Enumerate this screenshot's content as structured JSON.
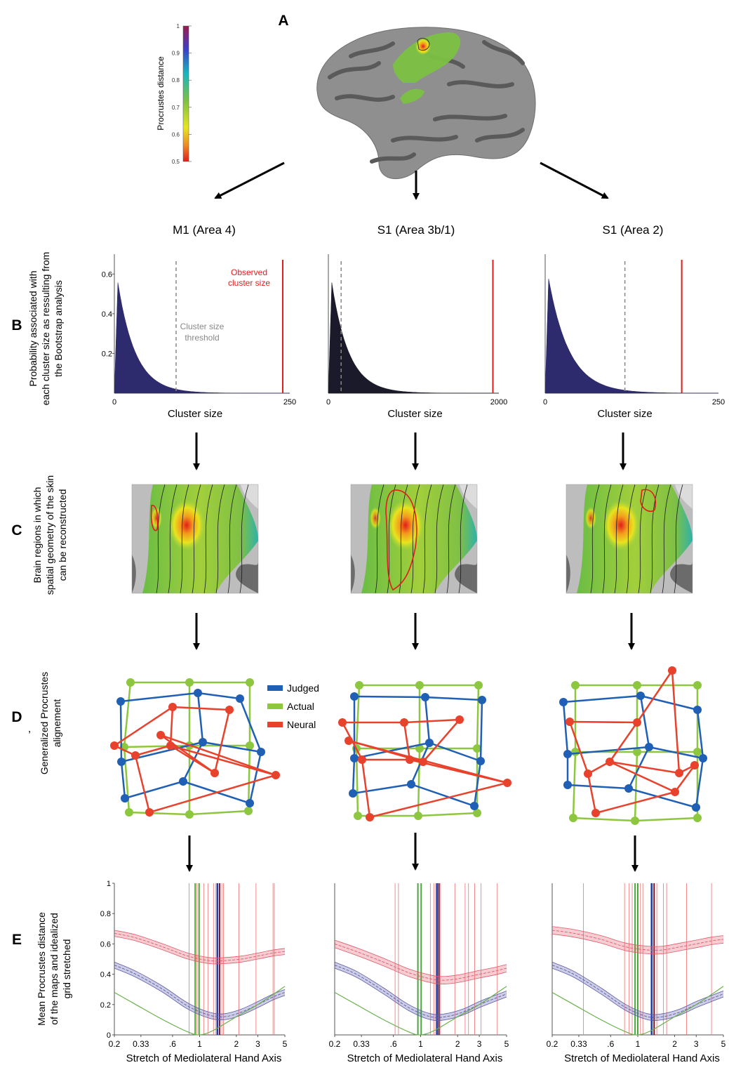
{
  "panel_letters": [
    "A",
    "B",
    "C",
    "D",
    "E",
    "’"
  ],
  "colorbar": {
    "label": "Procrustes distance",
    "ticks": [
      "1",
      "0.9",
      "0.8",
      "0.7",
      "0.6",
      "0.5"
    ],
    "colors": [
      "#9b1a4b",
      "#3c3ec9",
      "#16b7bf",
      "#7dc242",
      "#e6e51e",
      "#f08a22",
      "#e31c1c"
    ]
  },
  "column_titles": [
    "M1 (Area 4)",
    "S1 (Area 3b/1)",
    "S1 (Area 2)"
  ],
  "row_labels": {
    "B": [
      "Probability associated with",
      "each cluster size as ressulting from",
      "the Bootstrap analysis"
    ],
    "C": [
      "Brain regions  in which",
      "spatial geometry of the skin",
      "can be reconstructed"
    ],
    "D": [
      "Generalized Procrustes",
      "alignement"
    ],
    "E": [
      "Mean Procrustes distance",
      "of the  maps and idealized",
      "grid stretched"
    ]
  },
  "annotations": {
    "observed": [
      "Observed",
      "cluster size"
    ],
    "threshold": [
      "Cluster size",
      "threshold"
    ]
  },
  "legend": [
    {
      "label": "Judged",
      "color": "#1f5fb5"
    },
    {
      "label": "Actual",
      "color": "#8dc63f"
    },
    {
      "label": "Neural",
      "color": "#e8412c"
    }
  ],
  "chart_data": [
    {
      "type": "area",
      "panel": "B",
      "column": "M1 (Area 4)",
      "xlabel": "Cluster size",
      "x_tick_labels": [
        "0",
        "250"
      ],
      "y_tick_labels": [
        "0.2",
        "0.4",
        "0.6"
      ],
      "xlim": [
        0,
        250
      ],
      "ylim": [
        0,
        0.7
      ],
      "decay_scale": 25,
      "threshold": 88,
      "observed": 240
    },
    {
      "type": "area",
      "panel": "B",
      "column": "S1 (Area 3b/1)",
      "xlabel": "Cluster size",
      "x_tick_labels": [
        "0",
        "2000"
      ],
      "y_tick_labels": [],
      "xlim": [
        0,
        2000
      ],
      "ylim": [
        0,
        0.7
      ],
      "decay_scale": 25,
      "threshold": 150,
      "observed": 1930
    },
    {
      "type": "area",
      "panel": "B",
      "column": "S1 (Area 2)",
      "xlabel": "Cluster size",
      "x_tick_labels": [
        "0",
        "250"
      ],
      "y_tick_labels": [],
      "xlim": [
        0,
        250
      ],
      "ylim": [
        0,
        0.7
      ],
      "decay_scale": 30,
      "threshold": 115,
      "observed": 197
    },
    {
      "type": "line",
      "panel": "E",
      "column": "M1 (Area 4)",
      "xlabel": "Stretch of Mediolateral Hand Axis",
      "xscale": "log",
      "x_tick_labels": [
        "0.2",
        "0.33",
        ".6",
        "1",
        "2",
        "3",
        "5"
      ],
      "x_ticks": [
        0.2,
        0.33,
        0.6,
        1,
        2,
        3,
        5
      ],
      "y_tick_labels": [
        "0",
        "0.2",
        "0.4",
        "0.6",
        "0.8",
        "1"
      ],
      "xlim": [
        0.2,
        5
      ],
      "ylim": [
        0,
        1
      ],
      "series": [
        {
          "color": "#e05a6a",
          "band": 0.02,
          "x": [
            0.2,
            0.3,
            0.5,
            0.8,
            1.2,
            1.6,
            2.2,
            3,
            4,
            5
          ],
          "y": [
            0.67,
            0.64,
            0.58,
            0.52,
            0.49,
            0.49,
            0.5,
            0.52,
            0.54,
            0.55
          ]
        },
        {
          "color": "#5a5aa8",
          "band": 0.02,
          "x": [
            0.2,
            0.3,
            0.5,
            0.8,
            1.2,
            1.6,
            2.2,
            3,
            4,
            5
          ],
          "y": [
            0.46,
            0.4,
            0.3,
            0.19,
            0.13,
            0.12,
            0.15,
            0.2,
            0.25,
            0.28
          ]
        },
        {
          "color": "#6ab04c",
          "band": 0,
          "x": [
            0.2,
            0.3,
            0.5,
            0.8,
            1,
            1.3,
            2,
            3,
            5
          ],
          "y": [
            0.28,
            0.2,
            0.1,
            0.02,
            0,
            0.03,
            0.12,
            0.2,
            0.32
          ]
        }
      ],
      "vlines_red": [
        0.82,
        0.95,
        1.08,
        1.17,
        1.3,
        1.36,
        1.52,
        1.57,
        2.1,
        2.9,
        4.0,
        4.1
      ],
      "vlines_green": [
        0.92,
        0.99
      ],
      "vlines_blue": [
        1.4
      ],
      "vlines_dark": [
        1.46
      ]
    },
    {
      "type": "line",
      "panel": "E",
      "column": "S1 (Area 3b/1)",
      "xlabel": "Stretch of Mediolateral Hand Axis",
      "xscale": "log",
      "x_tick_labels": [
        "0.2",
        "0.33",
        ".6",
        "1",
        "2",
        "3",
        "5"
      ],
      "x_ticks": [
        0.2,
        0.33,
        0.6,
        1,
        2,
        3,
        5
      ],
      "y_tick_labels": [],
      "xlim": [
        0.2,
        5
      ],
      "ylim": [
        0,
        1
      ],
      "series": [
        {
          "color": "#e05a6a",
          "band": 0.025,
          "x": [
            0.2,
            0.3,
            0.5,
            0.8,
            1.2,
            1.5,
            2,
            3,
            4,
            5
          ],
          "y": [
            0.6,
            0.55,
            0.48,
            0.41,
            0.37,
            0.36,
            0.37,
            0.4,
            0.42,
            0.44
          ]
        },
        {
          "color": "#5a5aa8",
          "band": 0.02,
          "x": [
            0.2,
            0.3,
            0.5,
            0.8,
            1.2,
            1.6,
            2.2,
            3,
            4,
            5
          ],
          "y": [
            0.46,
            0.4,
            0.29,
            0.18,
            0.12,
            0.12,
            0.15,
            0.2,
            0.24,
            0.27
          ]
        },
        {
          "color": "#6ab04c",
          "band": 0,
          "x": [
            0.2,
            0.3,
            0.5,
            0.8,
            1,
            1.3,
            2,
            3,
            5
          ],
          "y": [
            0.28,
            0.2,
            0.1,
            0.02,
            0,
            0.03,
            0.12,
            0.2,
            0.32
          ]
        }
      ],
      "vlines_red": [
        0.62,
        0.66,
        1.2,
        1.28,
        1.33,
        1.45,
        1.9,
        2.3,
        2.45,
        2.75,
        3.1,
        4.2
      ],
      "vlines_green": [
        0.95,
        1.01
      ],
      "vlines_blue": [
        1.36
      ],
      "vlines_dark": [
        1.41
      ]
    },
    {
      "type": "line",
      "panel": "E",
      "column": "S1 (Area 2)",
      "xlabel": "Stretch of Mediolateral Hand Axis",
      "xscale": "log",
      "x_tick_labels": [
        "0.2",
        "0.33",
        ".6",
        "1",
        "2",
        "3",
        "5"
      ],
      "x_ticks": [
        0.2,
        0.33,
        0.6,
        1,
        2,
        3,
        5
      ],
      "y_tick_labels": [],
      "xlim": [
        0.2,
        5
      ],
      "ylim": [
        0,
        1
      ],
      "series": [
        {
          "color": "#e05a6a",
          "band": 0.025,
          "x": [
            0.2,
            0.3,
            0.5,
            0.8,
            1.2,
            1.6,
            2.2,
            3,
            4,
            5
          ],
          "y": [
            0.69,
            0.67,
            0.63,
            0.58,
            0.56,
            0.56,
            0.58,
            0.6,
            0.62,
            0.63
          ]
        },
        {
          "color": "#5a5aa8",
          "band": 0.02,
          "x": [
            0.2,
            0.3,
            0.5,
            0.8,
            1.2,
            1.6,
            2.2,
            3,
            4,
            5
          ],
          "y": [
            0.46,
            0.4,
            0.29,
            0.18,
            0.12,
            0.12,
            0.15,
            0.2,
            0.24,
            0.27
          ]
        },
        {
          "color": "#6ab04c",
          "band": 0,
          "x": [
            0.2,
            0.3,
            0.5,
            0.8,
            1,
            1.3,
            2,
            3,
            5
          ],
          "y": [
            0.28,
            0.2,
            0.1,
            0.02,
            0,
            0.03,
            0.12,
            0.2,
            0.32
          ]
        }
      ],
      "vlines_red": [
        0.36,
        0.78,
        0.85,
        0.9,
        1.05,
        1.1,
        1.28,
        1.43,
        1.62,
        1.72,
        2.5,
        4.0
      ],
      "vlines_green": [
        0.95,
        1.0
      ],
      "vlines_blue": [
        1.3
      ],
      "vlines_dark": [
        1.36
      ]
    }
  ]
}
